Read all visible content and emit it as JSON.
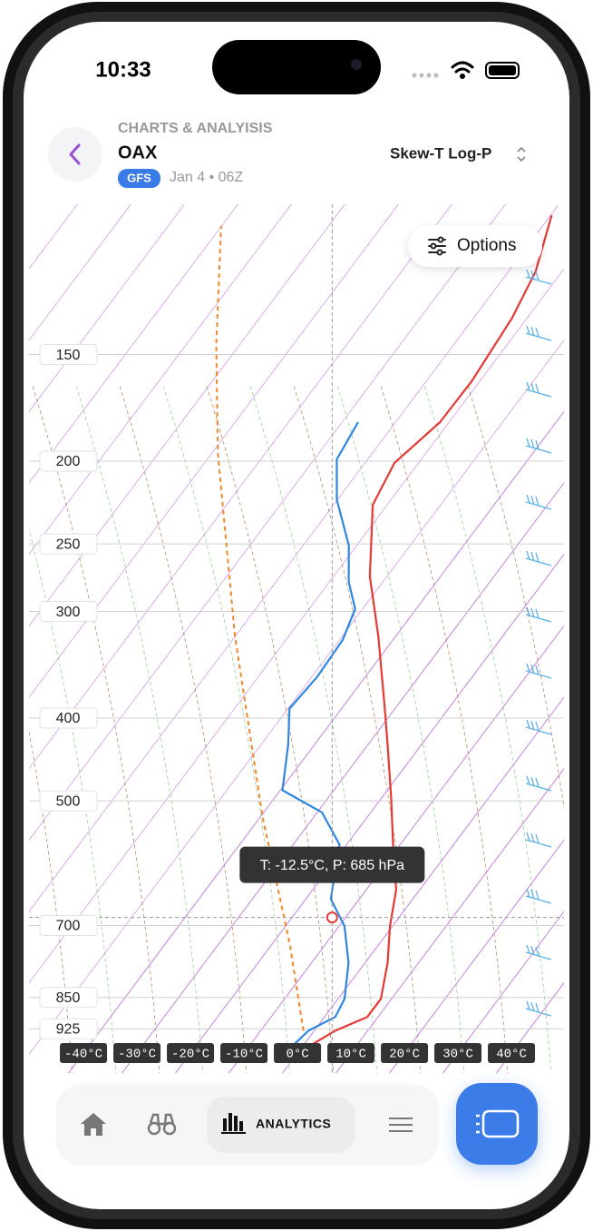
{
  "status": {
    "time": "10:33"
  },
  "header": {
    "section": "CHARTS & ANALYISIS",
    "station": "OAX",
    "model": "GFS",
    "run": "Jan 4 • 06Z",
    "chart_type": "Skew-T Log-P"
  },
  "options_button": "Options",
  "nav": {
    "active": "ANALYTICS"
  },
  "chart_data": {
    "type": "skew-t",
    "log_y": true,
    "ylim": [
      1050,
      100
    ],
    "yticks": [
      150,
      200,
      250,
      300,
      400,
      500,
      700,
      850,
      925
    ],
    "xlim": [
      -47,
      53
    ],
    "xticks": [
      {
        "value": -40,
        "label": "-40°C"
      },
      {
        "value": -30,
        "label": "-30°C"
      },
      {
        "value": -20,
        "label": "-20°C"
      },
      {
        "value": -10,
        "label": "-10°C"
      },
      {
        "value": 0,
        "label": "0°C"
      },
      {
        "value": 10,
        "label": "10°C"
      },
      {
        "value": 20,
        "label": "20°C"
      },
      {
        "value": 30,
        "label": "30°C"
      },
      {
        "value": 40,
        "label": "40°C"
      }
    ],
    "grid": true,
    "series": [
      {
        "color": "#f0872a",
        "dashed": true,
        "x": [
          -2.0,
          -16.6,
          -39.5,
          -70.0,
          -98.8,
          -114.4,
          -130.1
        ],
        "y": [
          930,
          737,
          523,
          321,
          196,
          146,
          106
        ]
      },
      {
        "color": "#e53935",
        "dashed": false,
        "x": [
          1.6,
          3.9,
          8.0,
          8.0,
          4.2,
          -0.5,
          -4.4,
          -11.3,
          -18.0,
          -26.3,
          -31.9,
          -43.2,
          -53.2,
          -62.7,
          -64.5,
          -61.7,
          -61.5,
          -62.8,
          -64.9,
          -69.8
        ],
        "y": [
          964,
          930,
          896,
          853,
          774,
          701,
          636,
          563,
          498,
          430,
          390,
          321,
          273,
          225,
          201,
          180,
          161,
          136,
          120,
          103
        ]
      },
      {
        "color": "#2f86e0",
        "dashed": false,
        "x": [
          -1.8,
          -1.1,
          2.0,
          1.2,
          -3.1,
          -9.0,
          -15.3,
          -18.9,
          -21.3,
          -29.1,
          -39.6,
          -44.9,
          -49.7,
          -49.0,
          -49.4,
          -51.4,
          -56.4,
          -61.5,
          -70.1,
          -75.8,
          -77.0
        ],
        "y": [
          964,
          930,
          896,
          853,
          774,
          701,
          652,
          598,
          563,
          516,
          486,
          430,
          390,
          358,
          324,
          298,
          277,
          251,
          222,
          199,
          180
        ]
      }
    ],
    "cursor": {
      "label": "T: -12.5°C, P: 685 hPa",
      "temperature": -12.5,
      "pressure": 685
    }
  }
}
